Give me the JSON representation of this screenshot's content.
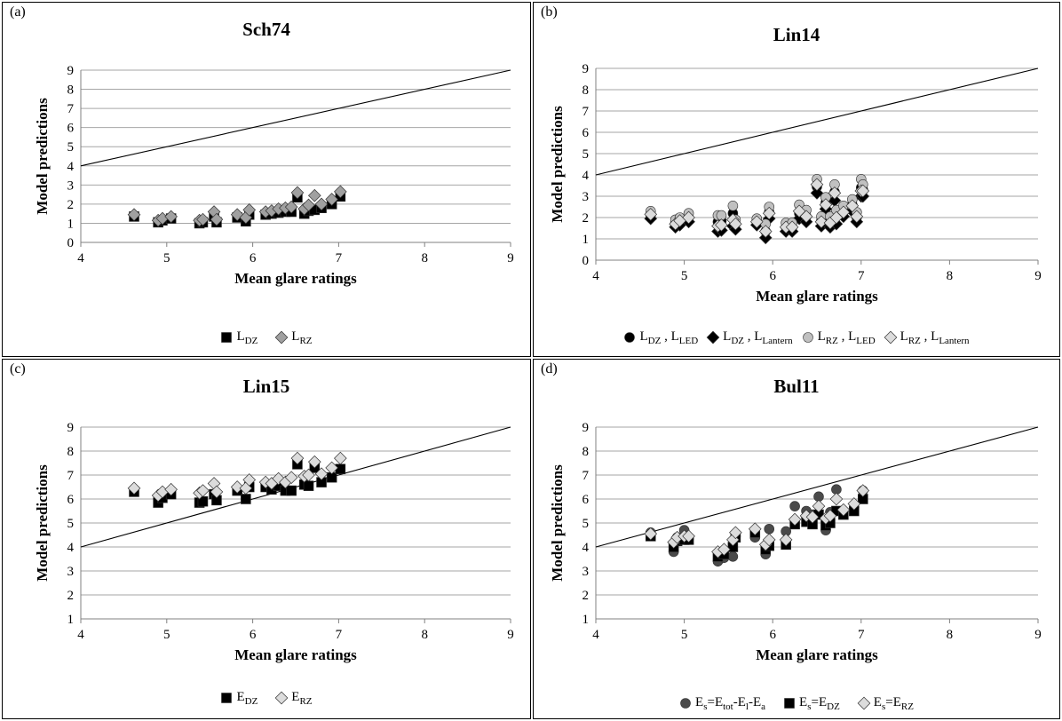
{
  "colors": {
    "black": "#000000",
    "dark_gray": "#4a4a4a",
    "mid_gray": "#a0a0a0",
    "light_gray": "#c0c0c0",
    "pale_gray": "#dcdcdc",
    "grid": "#a6a6a6"
  },
  "chart_data": [
    {
      "panel": "(a)",
      "type": "scatter",
      "title": "Sch74",
      "xlabel": "Mean glare ratings",
      "ylabel": "Model predictions",
      "xlim": [
        4,
        9
      ],
      "ylim": [
        0,
        9
      ],
      "xticks": [
        4,
        5,
        6,
        7,
        8,
        9
      ],
      "yticks": [
        0,
        1,
        2,
        3,
        4,
        5,
        6,
        7,
        8,
        9
      ],
      "grid": "horizontal",
      "reference_line": "y = x",
      "legend": "bottom",
      "series": [
        {
          "label_main": "L",
          "label_sub": "DZ",
          "marker": "square",
          "color": "#000000",
          "x": [
            4.62,
            4.9,
            4.95,
            5.05,
            5.38,
            5.42,
            5.55,
            5.58,
            5.82,
            5.92,
            5.96,
            6.15,
            6.22,
            6.3,
            6.38,
            6.45,
            6.52,
            6.6,
            6.65,
            6.72,
            6.8,
            6.92,
            7.02
          ],
          "y": [
            1.35,
            1.05,
            1.15,
            1.25,
            1.0,
            1.05,
            1.35,
            1.05,
            1.3,
            1.1,
            1.45,
            1.45,
            1.5,
            1.55,
            1.6,
            1.6,
            2.35,
            1.5,
            1.65,
            1.7,
            1.8,
            2.0,
            2.4
          ]
        },
        {
          "label_main": "L",
          "label_sub": "RZ",
          "marker": "diamond",
          "color": "#a0a0a0",
          "x": [
            4.62,
            4.9,
            4.95,
            5.05,
            5.38,
            5.42,
            5.55,
            5.58,
            5.82,
            5.92,
            5.96,
            6.15,
            6.22,
            6.3,
            6.38,
            6.45,
            6.52,
            6.6,
            6.65,
            6.72,
            6.8,
            6.92,
            7.02
          ],
          "y": [
            1.45,
            1.15,
            1.25,
            1.35,
            1.15,
            1.2,
            1.6,
            1.2,
            1.45,
            1.3,
            1.7,
            1.6,
            1.65,
            1.75,
            1.8,
            1.85,
            2.6,
            1.75,
            1.95,
            2.45,
            2.0,
            2.25,
            2.65
          ]
        }
      ]
    },
    {
      "panel": "(b)",
      "type": "scatter",
      "title": "Lin14",
      "xlabel": "Mean glare ratings",
      "ylabel": "Model predictions",
      "xlim": [
        4,
        9
      ],
      "ylim": [
        0,
        9
      ],
      "xticks": [
        4,
        5,
        6,
        7,
        8,
        9
      ],
      "yticks": [
        0,
        1,
        2,
        3,
        4,
        5,
        6,
        7,
        8,
        9
      ],
      "grid": "horizontal",
      "reference_line": "y = x",
      "legend": "bottom",
      "series": [
        {
          "label_main": "L",
          "label_sub": "DZ",
          "label_main2": "L",
          "label_sub2": "LED",
          "marker": "circle",
          "color": "#000000",
          "x": [
            4.62,
            4.9,
            4.95,
            5.05,
            5.38,
            5.42,
            5.55,
            5.58,
            5.82,
            5.92,
            5.96,
            6.15,
            6.22,
            6.3,
            6.38,
            6.5,
            6.55,
            6.6,
            6.65,
            6.7,
            6.72,
            6.8,
            6.9,
            6.95,
            7.0,
            7.02
          ],
          "y": [
            2.1,
            1.75,
            1.85,
            2.0,
            1.8,
            1.85,
            2.2,
            1.7,
            1.85,
            1.35,
            2.25,
            1.55,
            1.55,
            2.2,
            2.05,
            3.45,
            1.85,
            2.7,
            1.85,
            3.2,
            2.05,
            2.3,
            2.6,
            2.0,
            3.4,
            3.3
          ]
        },
        {
          "label_main": "L",
          "label_sub": "DZ",
          "label_main2": "L",
          "label_sub2": "Lantern",
          "marker": "diamond",
          "color": "#000000",
          "x": [
            4.62,
            4.9,
            4.95,
            5.05,
            5.38,
            5.42,
            5.55,
            5.58,
            5.82,
            5.92,
            5.96,
            6.15,
            6.22,
            6.3,
            6.38,
            6.5,
            6.55,
            6.6,
            6.65,
            6.7,
            6.72,
            6.8,
            6.9,
            6.95,
            7.0,
            7.02
          ],
          "y": [
            1.95,
            1.55,
            1.65,
            1.8,
            1.35,
            1.4,
            1.6,
            1.45,
            1.65,
            1.05,
            1.95,
            1.35,
            1.35,
            1.95,
            1.8,
            3.15,
            1.6,
            2.4,
            1.55,
            2.8,
            1.7,
            2.05,
            2.3,
            1.8,
            3.0,
            3.0
          ]
        },
        {
          "label_main": "L",
          "label_sub": "RZ",
          "label_main2": "L",
          "label_sub2": "LED",
          "marker": "circle",
          "color": "#c0c0c0",
          "x": [
            4.62,
            4.9,
            4.95,
            5.05,
            5.38,
            5.42,
            5.55,
            5.58,
            5.82,
            5.92,
            5.96,
            6.15,
            6.22,
            6.3,
            6.38,
            6.5,
            6.55,
            6.6,
            6.65,
            6.7,
            6.72,
            6.8,
            6.9,
            6.95,
            7.0,
            7.02
          ],
          "y": [
            2.3,
            1.9,
            2.0,
            2.2,
            2.1,
            2.1,
            2.55,
            1.9,
            1.95,
            1.7,
            2.5,
            1.75,
            1.75,
            2.6,
            2.35,
            3.8,
            2.05,
            2.95,
            2.05,
            3.55,
            2.35,
            2.55,
            2.85,
            2.25,
            3.8,
            3.55
          ]
        },
        {
          "label_main": "L",
          "label_sub": "RZ",
          "label_main2": "L",
          "label_sub2": "Lantern",
          "marker": "diamond",
          "color": "#dcdcdc",
          "x": [
            4.62,
            4.9,
            4.95,
            5.05,
            5.38,
            5.42,
            5.55,
            5.58,
            5.82,
            5.92,
            5.96,
            6.15,
            6.22,
            6.3,
            6.38,
            6.5,
            6.55,
            6.6,
            6.65,
            6.7,
            6.72,
            6.8,
            6.9,
            6.95,
            7.0,
            7.02
          ],
          "y": [
            2.15,
            1.7,
            1.85,
            2.0,
            1.6,
            1.65,
            1.9,
            1.7,
            1.8,
            1.35,
            2.2,
            1.55,
            1.55,
            2.3,
            2.05,
            3.55,
            1.8,
            2.6,
            1.75,
            3.15,
            2.0,
            2.25,
            2.55,
            2.05,
            3.25,
            3.25
          ]
        }
      ]
    },
    {
      "panel": "(c)",
      "type": "scatter",
      "title": "Lin15",
      "xlabel": "Mean glare ratings",
      "ylabel": "Model predictions",
      "xlim": [
        4,
        9
      ],
      "ylim": [
        1,
        9
      ],
      "xticks": [
        4,
        5,
        6,
        7,
        8,
        9
      ],
      "yticks": [
        1,
        2,
        3,
        4,
        5,
        6,
        7,
        8,
        9
      ],
      "grid": "horizontal",
      "reference_line": "y = x",
      "legend": "bottom",
      "series": [
        {
          "label_main": "E",
          "label_sub": "DZ",
          "marker": "square",
          "color": "#000000",
          "x": [
            4.62,
            4.9,
            4.95,
            5.05,
            5.38,
            5.42,
            5.55,
            5.58,
            5.82,
            5.92,
            5.96,
            6.15,
            6.22,
            6.3,
            6.38,
            6.45,
            6.52,
            6.6,
            6.65,
            6.72,
            6.8,
            6.92,
            7.02
          ],
          "y": [
            6.3,
            5.85,
            6.05,
            6.2,
            5.85,
            5.9,
            6.2,
            5.95,
            6.35,
            6.0,
            6.5,
            6.5,
            6.4,
            6.55,
            6.35,
            6.35,
            7.45,
            6.6,
            6.55,
            7.3,
            6.7,
            6.9,
            7.25
          ]
        },
        {
          "label_main": "E",
          "label_sub": "RZ",
          "marker": "diamond",
          "color": "#dcdcdc",
          "x": [
            4.62,
            4.9,
            4.95,
            5.05,
            5.38,
            5.42,
            5.55,
            5.58,
            5.82,
            5.92,
            5.96,
            6.15,
            6.22,
            6.3,
            6.38,
            6.45,
            6.52,
            6.6,
            6.65,
            6.72,
            6.8,
            6.92,
            7.02
          ],
          "y": [
            6.45,
            6.15,
            6.3,
            6.4,
            6.25,
            6.35,
            6.65,
            6.3,
            6.5,
            6.45,
            6.8,
            6.7,
            6.65,
            6.85,
            6.7,
            6.9,
            7.7,
            6.95,
            7.0,
            7.55,
            7.05,
            7.3,
            7.7
          ]
        }
      ]
    },
    {
      "panel": "(d)",
      "type": "scatter",
      "title": "Bul11",
      "xlabel": "Mean glare ratings",
      "ylabel": "Model predictions",
      "xlim": [
        4,
        9
      ],
      "ylim": [
        1,
        9
      ],
      "xticks": [
        4,
        5,
        6,
        7,
        8,
        9
      ],
      "yticks": [
        1,
        2,
        3,
        4,
        5,
        6,
        7,
        8,
        9
      ],
      "grid": "horizontal",
      "reference_line": "y = x",
      "legend": "bottom",
      "series": [
        {
          "label_parts": [
            [
              "E",
              "s"
            ],
            [
              "=E",
              "tot"
            ],
            [
              "-E",
              "l"
            ],
            [
              "-E",
              "a"
            ]
          ],
          "marker": "circle",
          "color": "#4a4a4a",
          "x": [
            4.62,
            4.88,
            4.92,
            5.0,
            5.05,
            5.38,
            5.45,
            5.55,
            5.58,
            5.8,
            5.92,
            5.96,
            6.15,
            6.25,
            6.38,
            6.45,
            6.52,
            6.6,
            6.65,
            6.72,
            6.8,
            6.92,
            7.02
          ],
          "y": [
            4.6,
            3.8,
            4.4,
            4.7,
            4.35,
            3.4,
            3.55,
            3.6,
            4.45,
            4.4,
            3.7,
            4.75,
            4.65,
            5.7,
            5.5,
            5.35,
            6.1,
            4.7,
            5.45,
            6.4,
            5.5,
            5.65,
            6.35
          ]
        },
        {
          "label_parts": [
            [
              "E",
              "s"
            ],
            [
              "=E",
              "DZ"
            ]
          ],
          "marker": "square",
          "color": "#000000",
          "x": [
            4.62,
            4.88,
            4.92,
            5.0,
            5.05,
            5.38,
            5.45,
            5.55,
            5.58,
            5.8,
            5.92,
            5.96,
            6.15,
            6.25,
            6.38,
            6.45,
            6.52,
            6.6,
            6.65,
            6.72,
            6.8,
            6.92,
            7.02
          ],
          "y": [
            4.45,
            4.0,
            4.25,
            4.3,
            4.3,
            3.6,
            3.7,
            4.0,
            4.4,
            4.6,
            3.9,
            4.05,
            4.1,
            4.95,
            5.05,
            4.95,
            5.35,
            4.9,
            5.0,
            5.5,
            5.35,
            5.5,
            6.0
          ]
        },
        {
          "label_parts": [
            [
              "E",
              "s"
            ],
            [
              "=E",
              "RZ"
            ]
          ],
          "marker": "diamond",
          "color": "#dcdcdc",
          "x": [
            4.62,
            4.88,
            4.92,
            5.0,
            5.05,
            5.38,
            5.45,
            5.55,
            5.58,
            5.8,
            5.92,
            5.96,
            6.15,
            6.25,
            6.38,
            6.45,
            6.52,
            6.6,
            6.65,
            6.72,
            6.8,
            6.92,
            7.02
          ],
          "y": [
            4.55,
            4.2,
            4.4,
            4.45,
            4.45,
            3.8,
            3.9,
            4.3,
            4.6,
            4.75,
            4.1,
            4.3,
            4.3,
            5.15,
            5.3,
            5.25,
            5.7,
            5.2,
            5.3,
            6.0,
            5.55,
            5.8,
            6.35
          ]
        }
      ]
    }
  ]
}
